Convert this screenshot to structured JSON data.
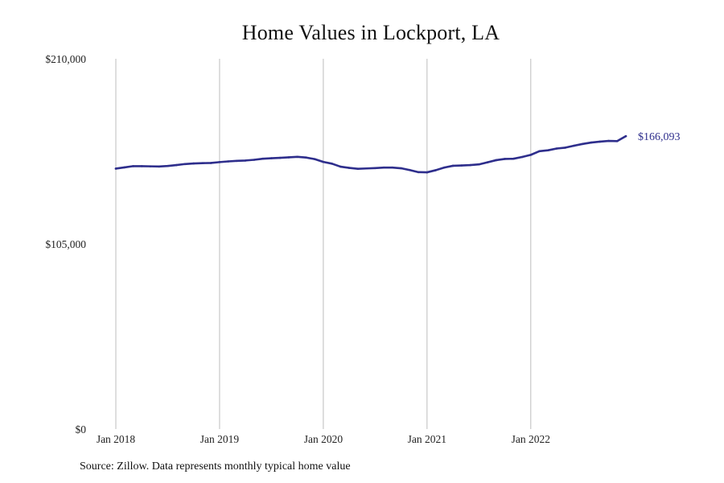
{
  "chart_data": {
    "type": "line",
    "title": "Home Values in Lockport, LA",
    "xlabel": "",
    "ylabel": "",
    "ylim": [
      0,
      210000
    ],
    "y_ticks": [
      {
        "value": 0,
        "label": "$0"
      },
      {
        "value": 105000,
        "label": "$105,000"
      },
      {
        "value": 210000,
        "label": "$210,000"
      }
    ],
    "x_ticks": [
      {
        "value": "2018-01",
        "label": "Jan 2018"
      },
      {
        "value": "2019-01",
        "label": "Jan 2019"
      },
      {
        "value": "2020-01",
        "label": "Jan 2020"
      },
      {
        "value": "2021-01",
        "label": "Jan 2021"
      },
      {
        "value": "2022-01",
        "label": "Jan 2022"
      }
    ],
    "x_grid": true,
    "y_grid": false,
    "line_color": "#2e2e8c",
    "grid_color": "#bdbdbd",
    "end_label": "$166,093",
    "series": [
      {
        "x": [
          "2018-01",
          "2018-02",
          "2018-03",
          "2018-04",
          "2018-05",
          "2018-06",
          "2018-07",
          "2018-08",
          "2018-09",
          "2018-10",
          "2018-11",
          "2018-12",
          "2019-01",
          "2019-02",
          "2019-03",
          "2019-04",
          "2019-05",
          "2019-06",
          "2019-07",
          "2019-08",
          "2019-09",
          "2019-10",
          "2019-11",
          "2019-12",
          "2020-01",
          "2020-02",
          "2020-03",
          "2020-04",
          "2020-05",
          "2020-06",
          "2020-07",
          "2020-08",
          "2020-09",
          "2020-10",
          "2020-11",
          "2020-12",
          "2021-01",
          "2021-02",
          "2021-03",
          "2021-04",
          "2021-05",
          "2021-06",
          "2021-07",
          "2021-08",
          "2021-09",
          "2021-10",
          "2021-11",
          "2021-12",
          "2022-01",
          "2022-02",
          "2022-03",
          "2022-04",
          "2022-05",
          "2022-06",
          "2022-07",
          "2022-08",
          "2022-09",
          "2022-10",
          "2022-11",
          "2022-12"
        ],
        "values": [
          147700,
          148400,
          149100,
          149100,
          149000,
          148900,
          149200,
          149700,
          150300,
          150600,
          150800,
          150900,
          151400,
          151800,
          152100,
          152300,
          152700,
          153300,
          153600,
          153800,
          154100,
          154400,
          154000,
          153100,
          151500,
          150500,
          148800,
          148100,
          147600,
          147800,
          148000,
          148300,
          148300,
          147900,
          146900,
          145700,
          145600,
          146800,
          148300,
          149300,
          149500,
          149700,
          150100,
          151300,
          152500,
          153200,
          153300,
          154300,
          155500,
          157600,
          158100,
          159100,
          159600,
          160700,
          161700,
          162500,
          163000,
          163400,
          163300,
          166093
        ]
      }
    ]
  },
  "source_note": "Source: Zillow. Data represents monthly typical home value"
}
